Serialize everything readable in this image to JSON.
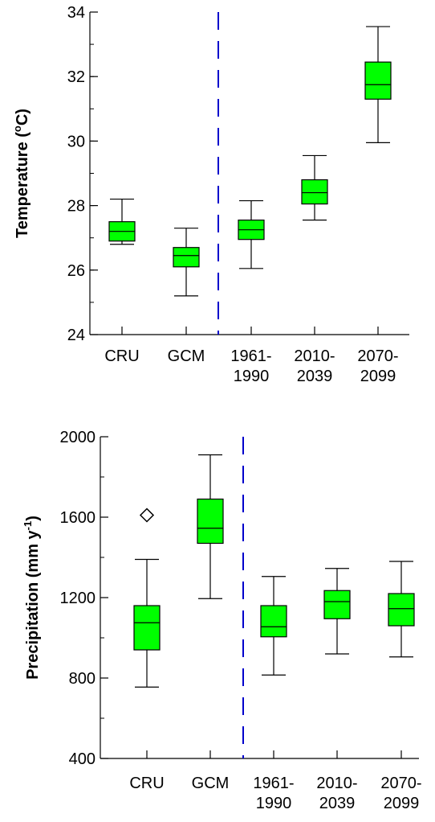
{
  "colors": {
    "box_fill": "#00ff00",
    "divider": "#0000cc",
    "ink": "#000000"
  },
  "chart_data": [
    {
      "type": "box",
      "title": "",
      "ylabel": "Temperature (°C)",
      "ylabel_main": "Temperature (",
      "ylabel_sup": "o",
      "ylabel_tail": "C)",
      "ylim": [
        24,
        34
      ],
      "yticks": [
        24,
        26,
        28,
        30,
        32,
        34
      ],
      "ytick_labels": [
        "24",
        "26",
        "28",
        "30",
        "32",
        "34"
      ],
      "yminor_step": 1,
      "categories": [
        {
          "lines": [
            "CRU"
          ]
        },
        {
          "lines": [
            "GCM"
          ]
        },
        {
          "lines": [
            "1961-",
            "1990"
          ]
        },
        {
          "lines": [
            "2010-",
            "2039"
          ]
        },
        {
          "lines": [
            "2070-",
            "2099"
          ]
        }
      ],
      "divider_after_index": 1,
      "boxes": [
        {
          "whisker_low": 26.8,
          "q1": 26.9,
          "median": 27.2,
          "q3": 27.5,
          "whisker_high": 28.2,
          "outliers": []
        },
        {
          "whisker_low": 25.2,
          "q1": 26.1,
          "median": 26.45,
          "q3": 26.7,
          "whisker_high": 27.3,
          "outliers": []
        },
        {
          "whisker_low": 26.05,
          "q1": 26.95,
          "median": 27.25,
          "q3": 27.55,
          "whisker_high": 28.15,
          "outliers": []
        },
        {
          "whisker_low": 27.55,
          "q1": 28.05,
          "median": 28.4,
          "q3": 28.8,
          "whisker_high": 29.55,
          "outliers": []
        },
        {
          "whisker_low": 29.95,
          "q1": 31.3,
          "median": 31.75,
          "q3": 32.45,
          "whisker_high": 33.55,
          "outliers": []
        }
      ]
    },
    {
      "type": "box",
      "title": "",
      "ylabel": "Precipitation (mm y-1)",
      "ylabel_main": "Precipitation (mm y",
      "ylabel_sup": "-1",
      "ylabel_tail": ")",
      "ylim": [
        400,
        2000
      ],
      "yticks": [
        400,
        800,
        1200,
        1600,
        2000
      ],
      "ytick_labels": [
        "400",
        "800",
        "1200",
        "1600",
        "2000"
      ],
      "yminor_step": 200,
      "categories": [
        {
          "lines": [
            "CRU"
          ]
        },
        {
          "lines": [
            "GCM"
          ]
        },
        {
          "lines": [
            "1961-",
            "1990"
          ]
        },
        {
          "lines": [
            "2010-",
            "2039"
          ]
        },
        {
          "lines": [
            "2070-",
            "2099"
          ]
        }
      ],
      "divider_after_index": 1,
      "boxes": [
        {
          "whisker_low": 755,
          "q1": 940,
          "median": 1075,
          "q3": 1160,
          "whisker_high": 1390,
          "outliers": [
            1610
          ]
        },
        {
          "whisker_low": 1195,
          "q1": 1470,
          "median": 1545,
          "q3": 1690,
          "whisker_high": 1910,
          "outliers": []
        },
        {
          "whisker_low": 815,
          "q1": 1005,
          "median": 1055,
          "q3": 1160,
          "whisker_high": 1305,
          "outliers": []
        },
        {
          "whisker_low": 920,
          "q1": 1095,
          "median": 1180,
          "q3": 1235,
          "whisker_high": 1345,
          "outliers": []
        },
        {
          "whisker_low": 905,
          "q1": 1060,
          "median": 1145,
          "q3": 1220,
          "whisker_high": 1380,
          "outliers": []
        }
      ]
    }
  ]
}
